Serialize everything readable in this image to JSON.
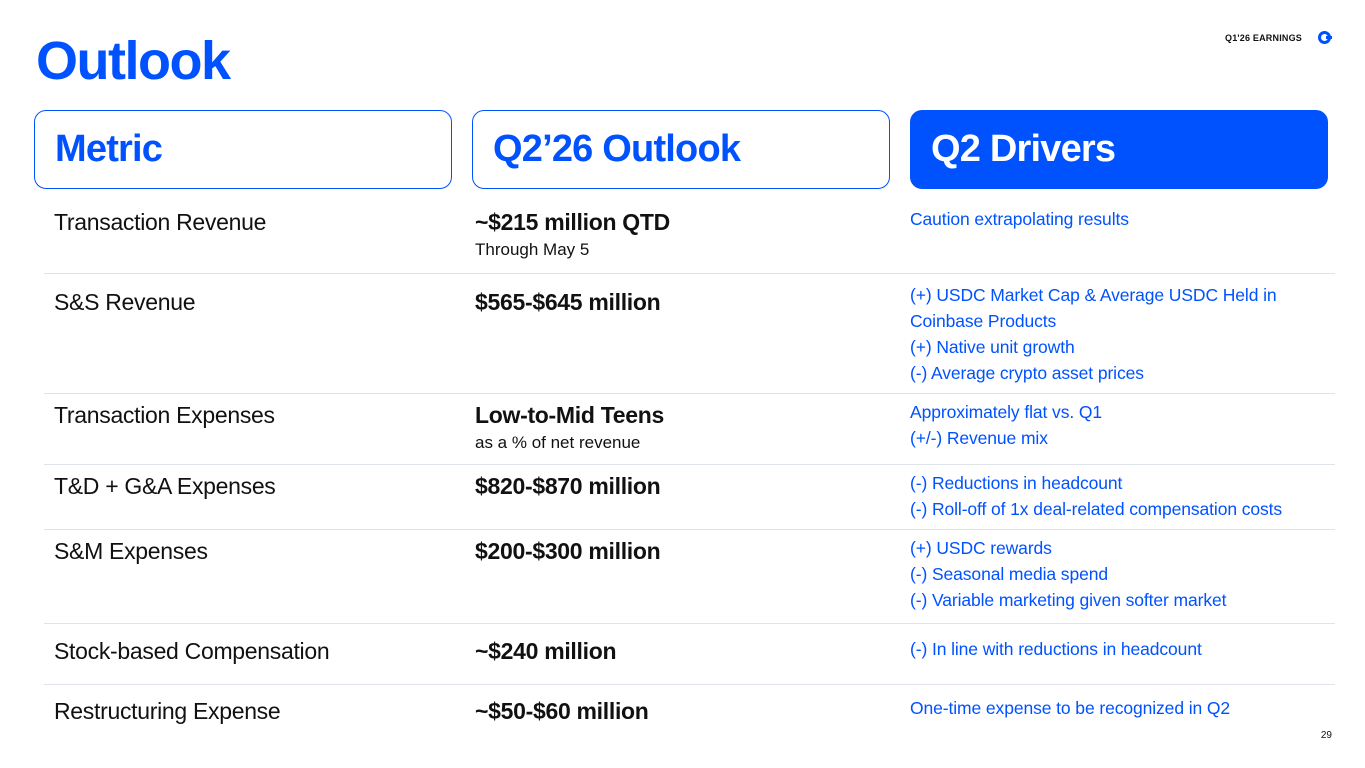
{
  "page": {
    "title": "Outlook",
    "top_label": "Q1'26 EARNINGS",
    "logo_icon": "coinbase-logo-icon",
    "page_number": "29",
    "accent_color": "#0052ff"
  },
  "headers": {
    "metric": "Metric",
    "outlook": "Q2’26 Outlook",
    "drivers": "Q2 Drivers"
  },
  "rows": [
    {
      "metric": "Transaction Revenue",
      "outlook": "~$215 million QTD",
      "outlook_sub": "Through May 5",
      "drivers": [
        "Caution extrapolating results"
      ]
    },
    {
      "metric": "S&S Revenue",
      "outlook": "$565-$645 million",
      "outlook_sub": "",
      "drivers": [
        "(+) USDC Market Cap & Average USDC Held in",
        "Coinbase Products",
        "(+) Native unit growth",
        "(-) Average crypto asset prices"
      ]
    },
    {
      "metric": "Transaction Expenses",
      "outlook": "Low-to-Mid Teens",
      "outlook_sub": "as a % of net revenue",
      "drivers": [
        "Approximately flat vs. Q1",
        "(+/-) Revenue mix"
      ]
    },
    {
      "metric": "T&D + G&A Expenses",
      "outlook": "$820-$870 million",
      "outlook_sub": "",
      "drivers": [
        "(-) Reductions in headcount",
        "(-) Roll-off of 1x deal-related compensation costs"
      ]
    },
    {
      "metric": "S&M Expenses",
      "outlook": "$200-$300 million",
      "outlook_sub": "",
      "drivers": [
        "(+) USDC rewards",
        "(-) Seasonal media spend",
        "(-) Variable marketing given softer market"
      ]
    },
    {
      "metric": "Stock-based Compensation",
      "outlook": "~$240 million",
      "outlook_sub": "",
      "drivers": [
        "(-) In line with reductions in headcount"
      ]
    },
    {
      "metric": "Restructuring Expense",
      "outlook": "~$50-$60 million",
      "outlook_sub": "",
      "drivers": [
        "One-time expense to be recognized in Q2"
      ]
    }
  ]
}
